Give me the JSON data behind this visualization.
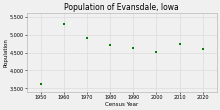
{
  "title": "Population of Evansdale, Iowa",
  "xlabel": "Census Year",
  "ylabel": "Population",
  "x": [
    1950,
    1960,
    1970,
    1980,
    1990,
    2000,
    2010,
    2020
  ],
  "y": [
    3616,
    5306,
    4912,
    4706,
    4617,
    4526,
    4734,
    4606
  ],
  "marker_color": "#008000",
  "marker": "s",
  "marker_size": 4,
  "ylim": [
    3400,
    5600
  ],
  "yticks": [
    3500,
    4000,
    4500,
    5000,
    5500
  ],
  "xlim": [
    1944,
    2026
  ],
  "xticks": [
    1950,
    1960,
    1970,
    1980,
    1990,
    2000,
    2010,
    2020
  ],
  "grid_color": "#dddddd",
  "bg_color": "#f0f0f0",
  "title_fontsize": 5.5,
  "label_fontsize": 4,
  "tick_fontsize": 3.5
}
